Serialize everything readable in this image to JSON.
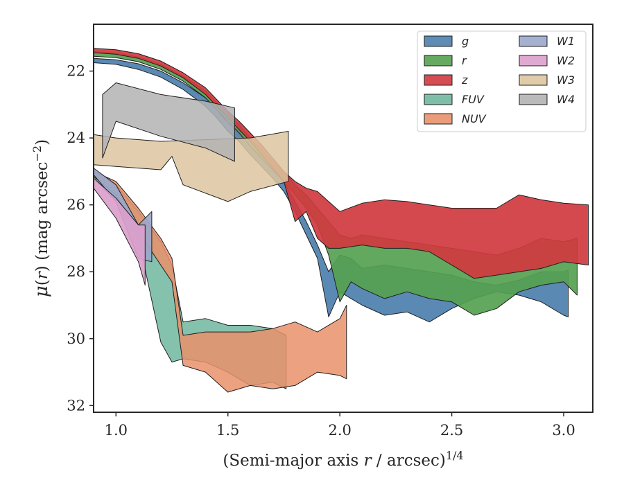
{
  "chart_data": {
    "type": "area",
    "xlabel": "(Semi-major axis r / arcsec)^1/4",
    "xlabel_parts": {
      "prefix": "(Semi-major axis ",
      "var": "r",
      "suffix": " / arcsec)",
      "sup": "1/4"
    },
    "ylabel": "μ(r) (mag arcsec⁻²)",
    "ylabel_parts": {
      "mu": "μ",
      "open": "(",
      "var": "r",
      "close": ")",
      "unit": " (mag arcsec",
      "sup": "−2",
      "end": ")"
    },
    "xlim": [
      0.9,
      3.13
    ],
    "ylim": [
      32.2,
      20.6
    ],
    "y_inverted": true,
    "grid": false,
    "legend": {
      "placement": "top-right",
      "columns": 2
    },
    "xticks": [
      {
        "value": 1.0,
        "label": "1.0"
      },
      {
        "value": 1.5,
        "label": "1.5"
      },
      {
        "value": 2.0,
        "label": "2.0"
      },
      {
        "value": 2.5,
        "label": "2.5"
      },
      {
        "value": 3.0,
        "label": "3.0"
      }
    ],
    "yticks": [
      {
        "value": 22,
        "label": "22"
      },
      {
        "value": 24,
        "label": "24"
      },
      {
        "value": 26,
        "label": "26"
      },
      {
        "value": 28,
        "label": "28"
      },
      {
        "value": 30,
        "label": "30"
      },
      {
        "value": 32,
        "label": "32"
      }
    ],
    "series": [
      {
        "name": "g",
        "color": "#4c7fae",
        "upper": [
          [
            0.9,
            21.62
          ],
          [
            1.0,
            21.66
          ],
          [
            1.1,
            21.78
          ],
          [
            1.2,
            22.0
          ],
          [
            1.3,
            22.35
          ],
          [
            1.4,
            22.8
          ],
          [
            1.45,
            23.15
          ],
          [
            1.5,
            23.55
          ],
          [
            1.55,
            23.8
          ],
          [
            1.6,
            24.2
          ],
          [
            1.65,
            24.55
          ],
          [
            1.7,
            24.9
          ],
          [
            1.75,
            25.3
          ],
          [
            1.8,
            25.9
          ],
          [
            1.85,
            26.5
          ],
          [
            1.9,
            27.2
          ],
          [
            1.95,
            28.0
          ],
          [
            2.0,
            27.5
          ],
          [
            2.05,
            27.6
          ],
          [
            2.1,
            27.9
          ],
          [
            2.2,
            27.8
          ],
          [
            2.3,
            27.9
          ],
          [
            2.4,
            28.0
          ],
          [
            2.5,
            28.1
          ],
          [
            2.6,
            28.3
          ],
          [
            2.7,
            28.4
          ],
          [
            2.8,
            28.25
          ],
          [
            2.9,
            28.0
          ],
          [
            3.0,
            28.0
          ],
          [
            3.02,
            27.95
          ]
        ],
        "lower": [
          [
            0.9,
            21.75
          ],
          [
            1.0,
            21.8
          ],
          [
            1.1,
            21.95
          ],
          [
            1.2,
            22.18
          ],
          [
            1.3,
            22.55
          ],
          [
            1.4,
            23.05
          ],
          [
            1.45,
            23.4
          ],
          [
            1.5,
            23.8
          ],
          [
            1.55,
            24.1
          ],
          [
            1.6,
            24.5
          ],
          [
            1.65,
            24.85
          ],
          [
            1.7,
            25.2
          ],
          [
            1.75,
            25.6
          ],
          [
            1.8,
            26.2
          ],
          [
            1.85,
            26.9
          ],
          [
            1.9,
            27.6
          ],
          [
            1.95,
            29.35
          ],
          [
            2.0,
            28.6
          ],
          [
            2.05,
            28.8
          ],
          [
            2.1,
            29.0
          ],
          [
            2.2,
            29.3
          ],
          [
            2.3,
            29.2
          ],
          [
            2.4,
            29.5
          ],
          [
            2.5,
            29.1
          ],
          [
            2.6,
            28.8
          ],
          [
            2.7,
            28.6
          ],
          [
            2.8,
            28.7
          ],
          [
            2.9,
            28.9
          ],
          [
            3.0,
            29.3
          ],
          [
            3.02,
            29.35
          ]
        ]
      },
      {
        "name": "r",
        "color": "#55a150",
        "upper": [
          [
            0.9,
            21.42
          ],
          [
            1.0,
            21.46
          ],
          [
            1.1,
            21.58
          ],
          [
            1.2,
            21.8
          ],
          [
            1.3,
            22.15
          ],
          [
            1.4,
            22.6
          ],
          [
            1.45,
            22.95
          ],
          [
            1.5,
            23.3
          ],
          [
            1.55,
            23.6
          ],
          [
            1.6,
            24.0
          ],
          [
            1.65,
            24.35
          ],
          [
            1.7,
            24.7
          ],
          [
            1.75,
            25.0
          ],
          [
            1.8,
            25.4
          ],
          [
            1.85,
            25.7
          ],
          [
            1.9,
            26.1
          ],
          [
            1.95,
            26.5
          ],
          [
            2.0,
            26.9
          ],
          [
            2.05,
            27.0
          ],
          [
            2.1,
            26.9
          ],
          [
            2.2,
            27.0
          ],
          [
            2.3,
            27.1
          ],
          [
            2.4,
            27.2
          ],
          [
            2.5,
            27.3
          ],
          [
            2.6,
            27.4
          ],
          [
            2.7,
            27.5
          ],
          [
            2.8,
            27.3
          ],
          [
            2.9,
            27.0
          ],
          [
            3.0,
            27.1
          ],
          [
            3.06,
            27.0
          ]
        ],
        "lower": [
          [
            0.9,
            21.56
          ],
          [
            1.0,
            21.6
          ],
          [
            1.1,
            21.72
          ],
          [
            1.2,
            21.95
          ],
          [
            1.3,
            22.3
          ],
          [
            1.4,
            22.8
          ],
          [
            1.45,
            23.15
          ],
          [
            1.5,
            23.5
          ],
          [
            1.55,
            23.85
          ],
          [
            1.6,
            24.25
          ],
          [
            1.65,
            24.6
          ],
          [
            1.7,
            24.95
          ],
          [
            1.75,
            25.3
          ],
          [
            1.8,
            25.7
          ],
          [
            1.85,
            26.1
          ],
          [
            1.9,
            26.6
          ],
          [
            1.95,
            27.5
          ],
          [
            2.0,
            28.9
          ],
          [
            2.05,
            28.3
          ],
          [
            2.1,
            28.5
          ],
          [
            2.2,
            28.8
          ],
          [
            2.3,
            28.6
          ],
          [
            2.4,
            28.8
          ],
          [
            2.5,
            28.9
          ],
          [
            2.6,
            29.3
          ],
          [
            2.7,
            29.1
          ],
          [
            2.8,
            28.6
          ],
          [
            2.9,
            28.4
          ],
          [
            3.0,
            28.3
          ],
          [
            3.06,
            28.7
          ]
        ]
      },
      {
        "name": "z",
        "color": "#d03a3f",
        "upper": [
          [
            0.9,
            21.32
          ],
          [
            1.0,
            21.36
          ],
          [
            1.1,
            21.48
          ],
          [
            1.2,
            21.7
          ],
          [
            1.3,
            22.05
          ],
          [
            1.4,
            22.5
          ],
          [
            1.45,
            22.85
          ],
          [
            1.5,
            23.2
          ],
          [
            1.55,
            23.5
          ],
          [
            1.6,
            23.85
          ],
          [
            1.65,
            24.2
          ],
          [
            1.7,
            24.6
          ],
          [
            1.75,
            25.0
          ],
          [
            1.8,
            25.3
          ],
          [
            1.85,
            25.5
          ],
          [
            1.9,
            25.6
          ],
          [
            1.95,
            25.9
          ],
          [
            2.0,
            26.2
          ],
          [
            2.1,
            25.95
          ],
          [
            2.2,
            25.85
          ],
          [
            2.3,
            25.9
          ],
          [
            2.4,
            26.0
          ],
          [
            2.5,
            26.1
          ],
          [
            2.6,
            26.1
          ],
          [
            2.7,
            26.1
          ],
          [
            2.8,
            25.7
          ],
          [
            2.9,
            25.85
          ],
          [
            3.0,
            25.95
          ],
          [
            3.11,
            26.0
          ]
        ],
        "lower": [
          [
            0.9,
            21.45
          ],
          [
            1.0,
            21.5
          ],
          [
            1.1,
            21.62
          ],
          [
            1.2,
            21.85
          ],
          [
            1.3,
            22.2
          ],
          [
            1.4,
            22.7
          ],
          [
            1.45,
            23.05
          ],
          [
            1.5,
            23.4
          ],
          [
            1.55,
            23.75
          ],
          [
            1.6,
            24.1
          ],
          [
            1.65,
            24.5
          ],
          [
            1.7,
            24.9
          ],
          [
            1.75,
            25.3
          ],
          [
            1.8,
            26.5
          ],
          [
            1.85,
            26.2
          ],
          [
            1.9,
            27.0
          ],
          [
            1.95,
            27.3
          ],
          [
            2.0,
            27.3
          ],
          [
            2.1,
            27.2
          ],
          [
            2.2,
            27.3
          ],
          [
            2.3,
            27.3
          ],
          [
            2.4,
            27.4
          ],
          [
            2.5,
            27.8
          ],
          [
            2.6,
            28.2
          ],
          [
            2.7,
            28.1
          ],
          [
            2.8,
            28.0
          ],
          [
            2.9,
            27.9
          ],
          [
            3.0,
            27.7
          ],
          [
            3.11,
            27.8
          ]
        ]
      },
      {
        "name": "FUV",
        "color": "#70b7a0",
        "upper": [
          [
            0.9,
            25.0
          ],
          [
            1.0,
            25.4
          ],
          [
            1.1,
            26.2
          ],
          [
            1.2,
            27.1
          ],
          [
            1.25,
            27.8
          ],
          [
            1.3,
            29.5
          ],
          [
            1.4,
            29.4
          ],
          [
            1.5,
            29.6
          ],
          [
            1.6,
            29.6
          ],
          [
            1.7,
            29.7
          ],
          [
            1.76,
            29.9
          ]
        ],
        "lower": [
          [
            0.9,
            25.2
          ],
          [
            1.0,
            25.9
          ],
          [
            1.1,
            27.0
          ],
          [
            1.2,
            30.1
          ],
          [
            1.25,
            30.7
          ],
          [
            1.3,
            30.6
          ],
          [
            1.4,
            30.7
          ],
          [
            1.5,
            31.0
          ],
          [
            1.6,
            31.4
          ],
          [
            1.7,
            31.3
          ],
          [
            1.76,
            31.5
          ]
        ]
      },
      {
        "name": "NUV",
        "color": "#e9916b",
        "upper": [
          [
            0.9,
            25.0
          ],
          [
            1.0,
            25.3
          ],
          [
            1.1,
            26.1
          ],
          [
            1.2,
            27.0
          ],
          [
            1.25,
            27.6
          ],
          [
            1.3,
            29.9
          ],
          [
            1.4,
            29.8
          ],
          [
            1.5,
            29.8
          ],
          [
            1.6,
            29.8
          ],
          [
            1.7,
            29.7
          ],
          [
            1.8,
            29.5
          ],
          [
            1.9,
            29.8
          ],
          [
            2.0,
            29.4
          ],
          [
            2.03,
            29.0
          ]
        ],
        "lower": [
          [
            0.9,
            25.15
          ],
          [
            1.0,
            25.7
          ],
          [
            1.1,
            26.8
          ],
          [
            1.2,
            27.8
          ],
          [
            1.25,
            28.3
          ],
          [
            1.3,
            30.8
          ],
          [
            1.4,
            31.0
          ],
          [
            1.5,
            31.6
          ],
          [
            1.6,
            31.4
          ],
          [
            1.7,
            31.5
          ],
          [
            1.8,
            31.4
          ],
          [
            1.9,
            31.0
          ],
          [
            2.0,
            31.1
          ],
          [
            2.03,
            31.2
          ]
        ]
      },
      {
        "name": "W1",
        "color": "#9ba8cb",
        "upper": [
          [
            0.9,
            24.9
          ],
          [
            1.0,
            25.4
          ],
          [
            1.1,
            26.6
          ],
          [
            1.16,
            26.2
          ]
        ],
        "lower": [
          [
            0.9,
            25.1
          ],
          [
            1.0,
            25.9
          ],
          [
            1.1,
            27.6
          ],
          [
            1.16,
            27.7
          ]
        ]
      },
      {
        "name": "W2",
        "color": "#dba0cc",
        "upper": [
          [
            0.9,
            25.2
          ],
          [
            1.0,
            25.8
          ],
          [
            1.1,
            26.6
          ],
          [
            1.13,
            26.6
          ]
        ],
        "lower": [
          [
            0.9,
            25.5
          ],
          [
            1.0,
            26.4
          ],
          [
            1.1,
            27.7
          ],
          [
            1.13,
            28.4
          ]
        ]
      },
      {
        "name": "W3",
        "color": "#ddc6a0",
        "upper": [
          [
            0.9,
            23.9
          ],
          [
            1.0,
            24.0
          ],
          [
            1.2,
            24.1
          ],
          [
            1.4,
            24.05
          ],
          [
            1.6,
            24.0
          ],
          [
            1.77,
            23.8
          ]
        ],
        "lower": [
          [
            0.9,
            24.8
          ],
          [
            1.0,
            24.85
          ],
          [
            1.2,
            24.95
          ],
          [
            1.25,
            24.55
          ],
          [
            1.3,
            25.4
          ],
          [
            1.5,
            25.9
          ],
          [
            1.6,
            25.6
          ],
          [
            1.77,
            25.3
          ]
        ]
      },
      {
        "name": "W4",
        "color": "#b3b3b3",
        "upper": [
          [
            0.94,
            22.7
          ],
          [
            1.0,
            22.35
          ],
          [
            1.2,
            22.7
          ],
          [
            1.4,
            22.9
          ],
          [
            1.53,
            23.1
          ]
        ],
        "lower": [
          [
            0.94,
            24.6
          ],
          [
            1.0,
            23.5
          ],
          [
            1.2,
            23.95
          ],
          [
            1.4,
            24.3
          ],
          [
            1.53,
            24.7
          ]
        ]
      }
    ]
  }
}
